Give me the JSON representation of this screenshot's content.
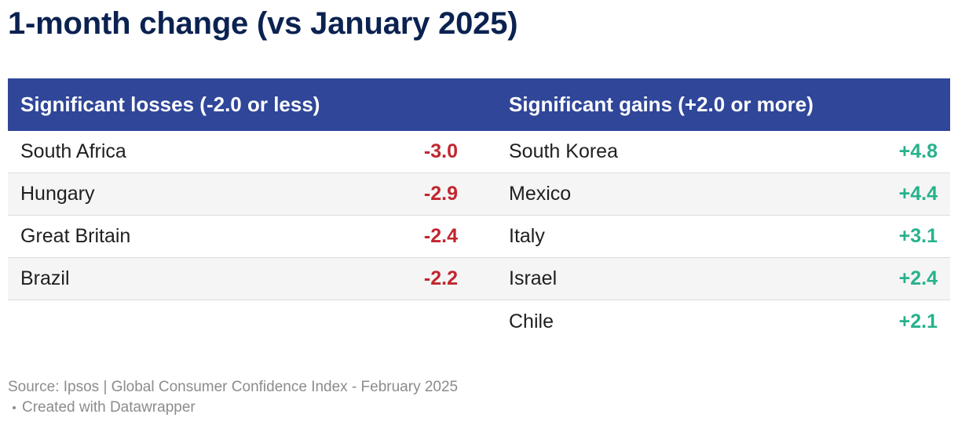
{
  "title": "1-month change (vs January 2025)",
  "colors": {
    "header_bg": "#2f4699",
    "title": "#0b2251",
    "loss": "#c2262e",
    "gain": "#27b28c",
    "footer": "#8c8c8c"
  },
  "chart_data": {
    "type": "table",
    "columns": [
      {
        "header": "Significant losses (-2.0 or less)",
        "rows": [
          {
            "country": "South Africa",
            "value": -3.0,
            "label": "-3.0"
          },
          {
            "country": "Hungary",
            "value": -2.9,
            "label": "-2.9"
          },
          {
            "country": "Great Britain",
            "value": -2.4,
            "label": "-2.4"
          },
          {
            "country": "Brazil",
            "value": -2.2,
            "label": "-2.2"
          }
        ]
      },
      {
        "header": "Significant gains (+2.0 or more)",
        "rows": [
          {
            "country": "South Korea",
            "value": 4.8,
            "label": "+4.8"
          },
          {
            "country": "Mexico",
            "value": 4.4,
            "label": "+4.4"
          },
          {
            "country": "Italy",
            "value": 3.1,
            "label": "+3.1"
          },
          {
            "country": "Israel",
            "value": 2.4,
            "label": "+2.4"
          },
          {
            "country": "Chile",
            "value": 2.1,
            "label": "+2.1"
          }
        ]
      }
    ]
  },
  "footer": {
    "source": "Source: Ipsos | Global Consumer Confidence Index - February 2025",
    "credit": "Created with Datawrapper"
  }
}
